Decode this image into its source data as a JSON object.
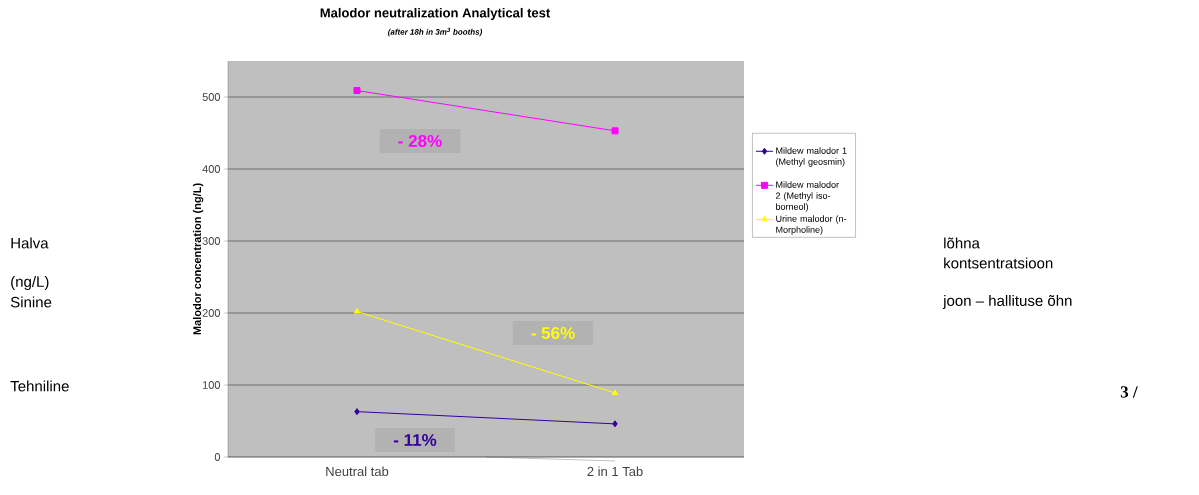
{
  "chart_data": {
    "type": "line",
    "title": "Malodor neutralization Analytical test",
    "subtitle": "(after 18h in 3m$^{3}$ booths)",
    "ylabel": "Malodor concentration (ng/L)",
    "categories": [
      "Neutral tab",
      "2 in 1 Tab"
    ],
    "series": [
      {
        "name": "Mildew malodor 1 (Methyl geosmin)",
        "color": "#330099",
        "values": [
          63,
          46
        ],
        "marker": "diamond"
      },
      {
        "name": "Mildew malodor 2 (Methyl iso-borneol)",
        "color": "#ff00ff",
        "values": [
          509,
          453
        ],
        "marker": "square"
      },
      {
        "name": "Urine malodor (n-Morpholine)",
        "color": "#ffff00",
        "values": [
          202,
          89
        ],
        "marker": "triangle"
      }
    ],
    "ylim": [
      0,
      550
    ],
    "yticks": [
      0,
      100,
      200,
      300,
      400,
      500
    ],
    "grid": "y",
    "legend": "right",
    "annotations": [
      "- 28%",
      "- 56%",
      "- 11%",
      "Halva",
      "lõhna",
      "kontsentratsioon",
      "(ng/L)",
      "Sinine",
      "joon – hallituse õhn",
      "Tehniline",
      "3 /"
    ]
  }
}
